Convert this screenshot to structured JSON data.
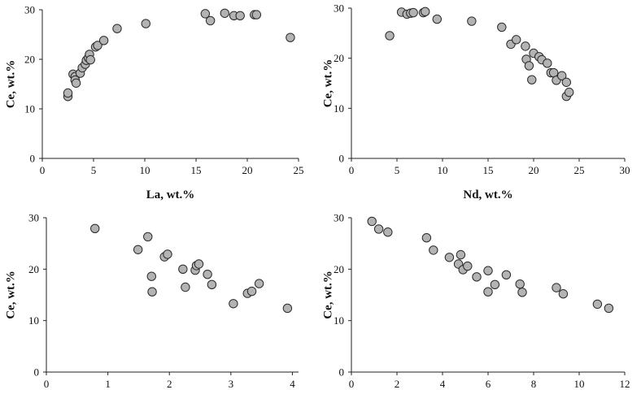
{
  "chart_data": [
    {
      "type": "scatter",
      "xlabel": "La, wt.%",
      "ylabel": "Ce, wt.%",
      "xlim": [
        0,
        25
      ],
      "ylim": [
        0,
        30
      ],
      "xticks": [
        0,
        5,
        10,
        15,
        20,
        25
      ],
      "yticks": [
        0,
        10,
        20,
        30
      ],
      "grid": false,
      "points": [
        [
          2.5,
          12.5
        ],
        [
          2.5,
          13.2
        ],
        [
          3.0,
          17.0
        ],
        [
          3.2,
          16.5
        ],
        [
          3.2,
          15.8
        ],
        [
          3.3,
          15.2
        ],
        [
          3.7,
          17.2
        ],
        [
          3.9,
          18.3
        ],
        [
          4.2,
          19.0
        ],
        [
          4.3,
          19.8
        ],
        [
          4.5,
          20.3
        ],
        [
          4.6,
          21.0
        ],
        [
          4.7,
          19.9
        ],
        [
          5.2,
          22.5
        ],
        [
          5.4,
          22.8
        ],
        [
          6.0,
          23.8
        ],
        [
          7.3,
          26.2
        ],
        [
          10.1,
          27.2
        ],
        [
          15.9,
          29.2
        ],
        [
          16.4,
          27.8
        ],
        [
          17.8,
          29.3
        ],
        [
          18.7,
          28.8
        ],
        [
          19.3,
          28.8
        ],
        [
          20.7,
          29.0
        ],
        [
          20.9,
          29.0
        ],
        [
          24.2,
          24.4
        ]
      ]
    },
    {
      "type": "scatter",
      "xlabel": "Nd, wt.%",
      "ylabel": "Ce, wt.%",
      "xlim": [
        0,
        30
      ],
      "ylim": [
        0,
        30
      ],
      "xticks": [
        0,
        5,
        10,
        15,
        20,
        25,
        30
      ],
      "yticks": [
        0,
        10,
        20,
        30
      ],
      "grid": false,
      "points": [
        [
          4.2,
          24.5
        ],
        [
          5.5,
          29.2
        ],
        [
          6.1,
          28.8
        ],
        [
          6.5,
          29.0
        ],
        [
          6.8,
          29.1
        ],
        [
          7.9,
          29.1
        ],
        [
          8.1,
          29.3
        ],
        [
          9.4,
          27.8
        ],
        [
          13.2,
          27.4
        ],
        [
          16.5,
          26.2
        ],
        [
          17.5,
          22.8
        ],
        [
          18.1,
          23.7
        ],
        [
          19.1,
          22.4
        ],
        [
          19.2,
          19.8
        ],
        [
          19.5,
          18.5
        ],
        [
          19.8,
          15.7
        ],
        [
          20.0,
          21.0
        ],
        [
          20.6,
          20.3
        ],
        [
          20.9,
          19.7
        ],
        [
          21.5,
          19.0
        ],
        [
          21.9,
          17.1
        ],
        [
          22.2,
          17.1
        ],
        [
          22.5,
          15.6
        ],
        [
          23.1,
          16.5
        ],
        [
          23.6,
          15.2
        ],
        [
          23.6,
          12.4
        ],
        [
          23.9,
          13.2
        ]
      ]
    },
    {
      "type": "scatter",
      "xlabel": "",
      "ylabel": "Ce, wt.%",
      "xlim": [
        0,
        4.1
      ],
      "ylim": [
        0,
        30
      ],
      "xticks": [
        0,
        1,
        2,
        3,
        4
      ],
      "yticks": [
        0,
        10,
        20,
        30
      ],
      "grid": false,
      "points": [
        [
          0.79,
          27.9
        ],
        [
          1.49,
          23.8
        ],
        [
          1.65,
          26.3
        ],
        [
          1.71,
          18.6
        ],
        [
          1.72,
          15.6
        ],
        [
          1.92,
          22.4
        ],
        [
          1.97,
          22.9
        ],
        [
          2.22,
          20.0
        ],
        [
          2.26,
          16.5
        ],
        [
          2.42,
          19.8
        ],
        [
          2.44,
          20.7
        ],
        [
          2.48,
          21.0
        ],
        [
          2.62,
          19.0
        ],
        [
          2.69,
          17.0
        ],
        [
          3.04,
          13.3
        ],
        [
          3.27,
          15.3
        ],
        [
          3.34,
          15.7
        ],
        [
          3.46,
          17.2
        ],
        [
          3.92,
          12.4
        ]
      ]
    },
    {
      "type": "scatter",
      "xlabel": "",
      "ylabel": "Ce, wt.%",
      "xlim": [
        0,
        12
      ],
      "ylim": [
        0,
        30
      ],
      "xticks": [
        0,
        2,
        4,
        6,
        8,
        10,
        12
      ],
      "yticks": [
        0,
        10,
        20,
        30
      ],
      "grid": false,
      "points": [
        [
          0.9,
          29.3
        ],
        [
          1.2,
          27.8
        ],
        [
          1.6,
          27.2
        ],
        [
          3.3,
          26.1
        ],
        [
          3.6,
          23.7
        ],
        [
          4.3,
          22.3
        ],
        [
          4.7,
          21.0
        ],
        [
          4.8,
          22.8
        ],
        [
          4.9,
          19.9
        ],
        [
          5.1,
          20.6
        ],
        [
          5.5,
          18.5
        ],
        [
          6.0,
          19.7
        ],
        [
          6.0,
          15.6
        ],
        [
          6.3,
          17.0
        ],
        [
          6.8,
          18.9
        ],
        [
          7.4,
          17.1
        ],
        [
          7.5,
          15.5
        ],
        [
          9.0,
          16.4
        ],
        [
          9.3,
          15.2
        ],
        [
          10.8,
          13.2
        ],
        [
          11.3,
          12.4
        ]
      ]
    }
  ],
  "colors": {
    "marker_fill": "#b3b3b3",
    "marker_stroke": "#2a2a2a",
    "axis": "#222222"
  }
}
